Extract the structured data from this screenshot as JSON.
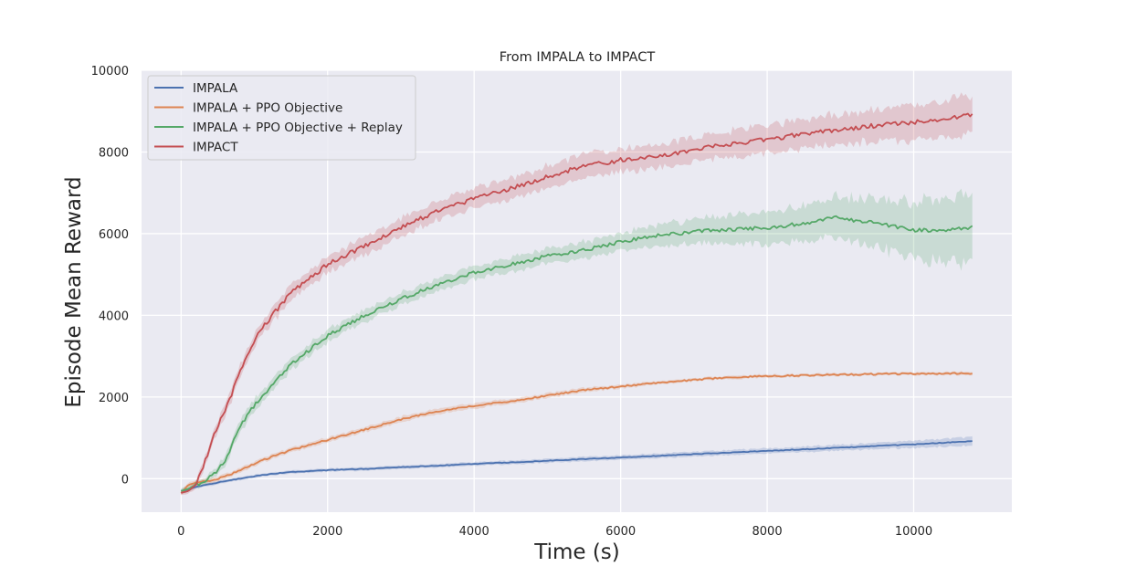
{
  "chart_data": {
    "type": "line",
    "title": "From IMPALA to IMPACT",
    "xlabel": "Time (s)",
    "ylabel": "Episode Mean Reward",
    "xlim": [
      -540,
      11340
    ],
    "ylim": [
      -820,
      10000
    ],
    "x_ticks": [
      0,
      2000,
      4000,
      6000,
      8000,
      10000
    ],
    "y_ticks": [
      0,
      2000,
      4000,
      6000,
      8000,
      10000
    ],
    "x_tick_labels": [
      "0",
      "2000",
      "4000",
      "6000",
      "8000",
      "10000"
    ],
    "y_tick_labels": [
      "0",
      "2000",
      "4000",
      "6000",
      "8000",
      "10000"
    ],
    "grid": true,
    "legend_position": "top-left",
    "background_color": "#eaeaf2",
    "series": [
      {
        "name": "IMPALA",
        "color": "#4c72b0",
        "x": [
          0,
          100,
          200,
          400,
          600,
          800,
          1000,
          1200,
          1500,
          2000,
          2500,
          3000,
          4000,
          5000,
          6000,
          7000,
          8000,
          9000,
          10000,
          10800
        ],
        "y": [
          -300,
          -260,
          -200,
          -130,
          -60,
          0,
          60,
          110,
          160,
          210,
          240,
          280,
          360,
          440,
          520,
          600,
          680,
          760,
          840,
          920
        ],
        "band": [
          40,
          40,
          40,
          40,
          40,
          40,
          40,
          40,
          40,
          40,
          40,
          40,
          45,
          50,
          55,
          60,
          65,
          75,
          90,
          100
        ]
      },
      {
        "name": "IMPALA + PPO Objective",
        "color": "#dd8452",
        "x": [
          0,
          100,
          200,
          300,
          400,
          600,
          800,
          1000,
          1200,
          1500,
          2000,
          2500,
          3000,
          3500,
          4000,
          4500,
          5000,
          5500,
          6000,
          6500,
          7000,
          7500,
          8000,
          8500,
          9000,
          9500,
          10000,
          10800
        ],
        "y": [
          -350,
          -150,
          -100,
          -60,
          -50,
          50,
          200,
          370,
          510,
          700,
          950,
          1200,
          1450,
          1650,
          1780,
          1900,
          2040,
          2170,
          2260,
          2350,
          2420,
          2480,
          2510,
          2530,
          2550,
          2560,
          2570,
          2580
        ],
        "band": [
          60,
          60,
          60,
          60,
          60,
          60,
          60,
          60,
          60,
          60,
          60,
          60,
          70,
          70,
          70,
          60,
          60,
          50,
          50,
          40,
          40,
          40,
          40,
          40,
          40,
          40,
          40,
          40
        ]
      },
      {
        "name": "IMPALA + PPO Objective + Replay",
        "color": "#55a868",
        "x": [
          0,
          100,
          200,
          300,
          400,
          500,
          600,
          800,
          1000,
          1200,
          1500,
          2000,
          2500,
          3000,
          3500,
          4000,
          4500,
          5000,
          5500,
          6000,
          6500,
          7000,
          7500,
          8000,
          8500,
          8900,
          9500,
          10000,
          10500,
          10800
        ],
        "y": [
          -300,
          -250,
          -150,
          -80,
          50,
          200,
          450,
          1250,
          1800,
          2200,
          2800,
          3500,
          4000,
          4400,
          4750,
          5050,
          5250,
          5450,
          5600,
          5800,
          5950,
          6050,
          6100,
          6150,
          6250,
          6400,
          6250,
          6080,
          6100,
          6150
        ],
        "band": [
          70,
          70,
          70,
          80,
          90,
          100,
          120,
          140,
          150,
          150,
          150,
          150,
          150,
          150,
          160,
          170,
          180,
          190,
          200,
          220,
          250,
          300,
          350,
          400,
          450,
          500,
          600,
          700,
          800,
          850
        ]
      },
      {
        "name": "IMPACT",
        "color": "#c44e52",
        "x": [
          0,
          100,
          200,
          300,
          400,
          500,
          600,
          800,
          1000,
          1200,
          1500,
          2000,
          2500,
          3000,
          3500,
          4000,
          4500,
          5000,
          5500,
          6000,
          6500,
          7000,
          7500,
          8000,
          8500,
          9000,
          9500,
          10000,
          10500,
          10800
        ],
        "y": [
          -350,
          -300,
          -150,
          300,
          800,
          1300,
          1650,
          2600,
          3400,
          3900,
          4550,
          5250,
          5700,
          6150,
          6550,
          6850,
          7100,
          7400,
          7650,
          7800,
          7900,
          8050,
          8200,
          8300,
          8450,
          8550,
          8650,
          8720,
          8820,
          8920
        ],
        "band": [
          60,
          70,
          90,
          110,
          130,
          140,
          150,
          160,
          170,
          180,
          190,
          200,
          210,
          220,
          230,
          240,
          250,
          260,
          270,
          280,
          290,
          300,
          320,
          340,
          360,
          380,
          400,
          420,
          460,
          500
        ]
      }
    ]
  }
}
